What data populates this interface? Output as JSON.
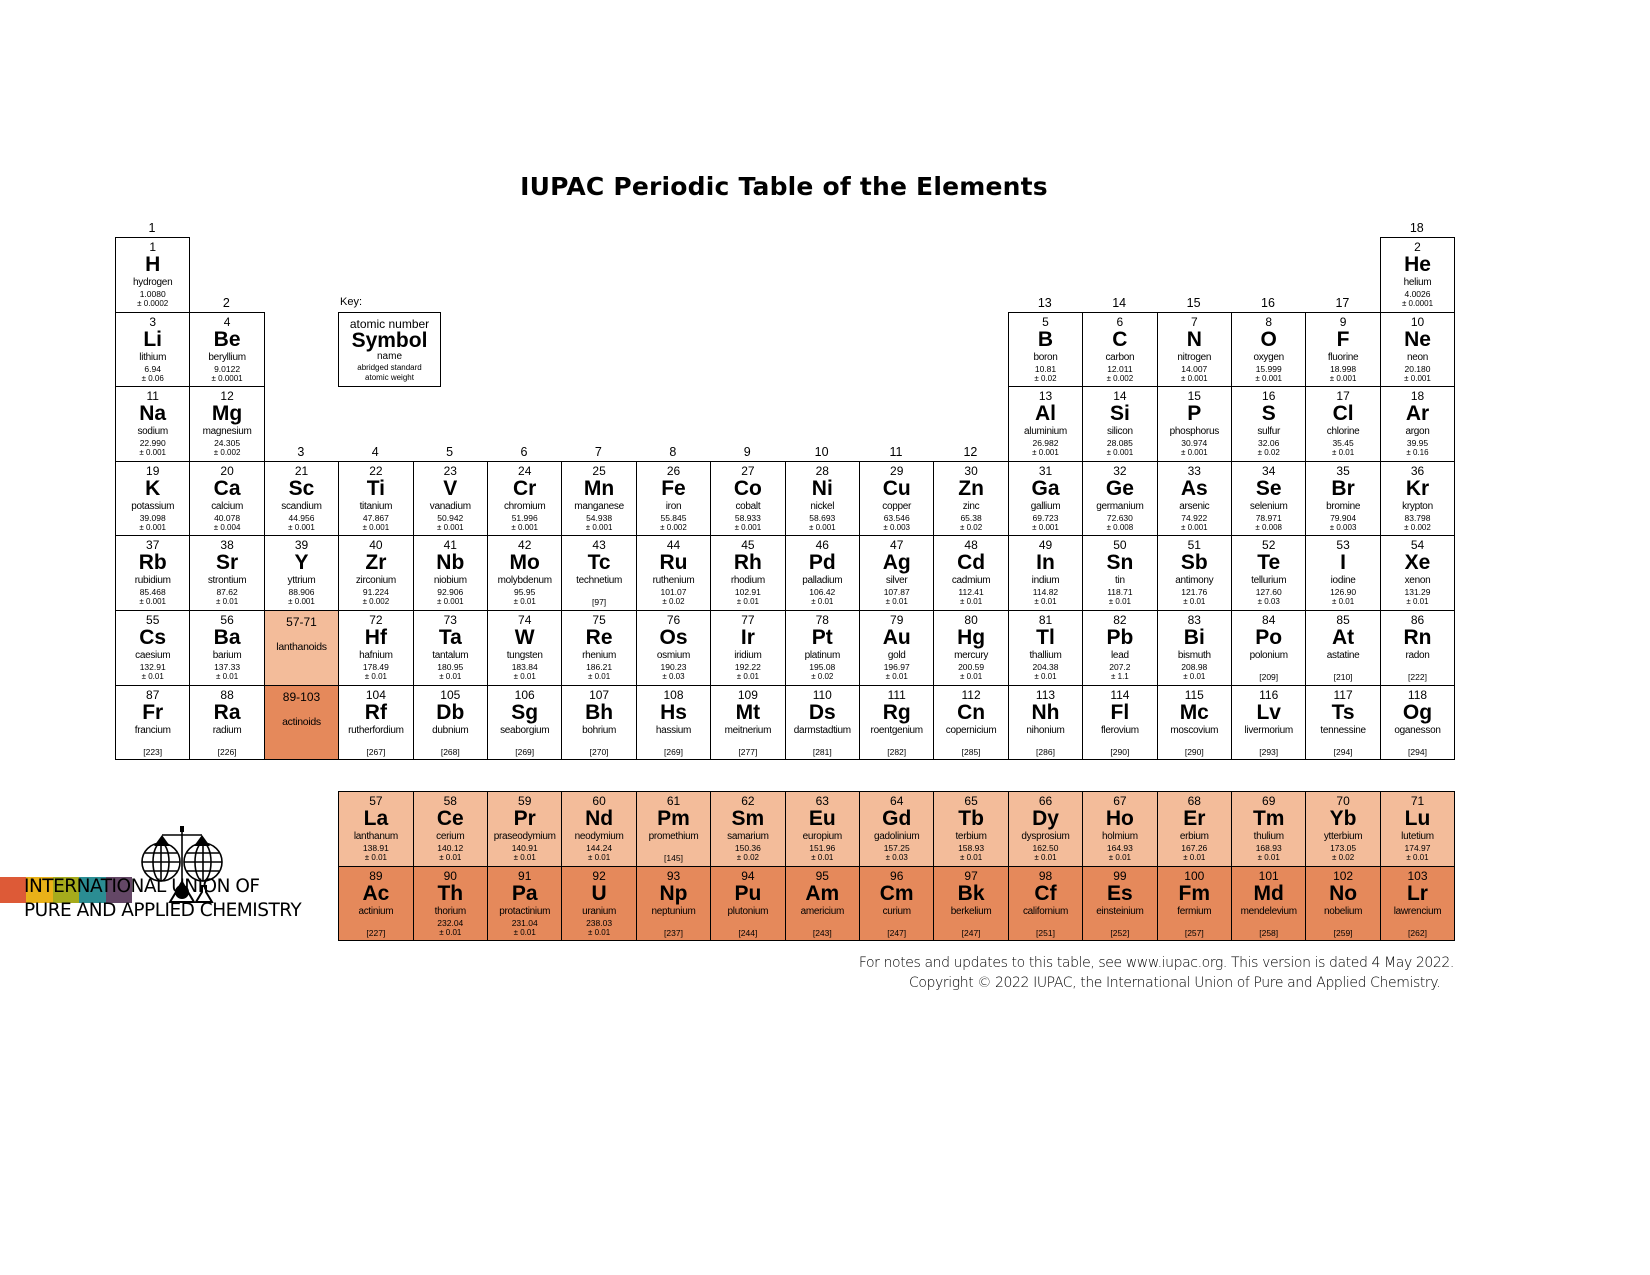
{
  "title": "IUPAC Periodic Table of the Elements",
  "group_labels": [
    1,
    2,
    3,
    4,
    5,
    6,
    7,
    8,
    9,
    10,
    11,
    12,
    13,
    14,
    15,
    16,
    17,
    18
  ],
  "key": {
    "label": "Key:",
    "atomic_number": "atomic number",
    "symbol": "Symbol",
    "name": "name",
    "weight_line1": "abridged standard",
    "weight_line2": "atomic weight"
  },
  "placeholders": {
    "lanthanoids": {
      "range": "57-71",
      "label": "lanthanoids"
    },
    "actinoids": {
      "range": "89-103",
      "label": "actinoids"
    }
  },
  "colors": {
    "lanthanoid": "#f3bc9a",
    "actinoid": "#e5895b",
    "logo_bars": [
      "#dd5a37",
      "#e9b118",
      "#a6ab1c",
      "#2b8d93",
      "#644766"
    ]
  },
  "elements": [
    {
      "n": 1,
      "s": "H",
      "name": "hydrogen",
      "w": "1.0080",
      "u": "± 0.0002",
      "p": 1,
      "g": 1
    },
    {
      "n": 2,
      "s": "He",
      "name": "helium",
      "w": "4.0026",
      "u": "± 0.0001",
      "p": 1,
      "g": 18
    },
    {
      "n": 3,
      "s": "Li",
      "name": "lithium",
      "w": "6.94",
      "u": "± 0.06",
      "p": 2,
      "g": 1
    },
    {
      "n": 4,
      "s": "Be",
      "name": "beryllium",
      "w": "9.0122",
      "u": "± 0.0001",
      "p": 2,
      "g": 2
    },
    {
      "n": 5,
      "s": "B",
      "name": "boron",
      "w": "10.81",
      "u": "± 0.02",
      "p": 2,
      "g": 13
    },
    {
      "n": 6,
      "s": "C",
      "name": "carbon",
      "w": "12.011",
      "u": "± 0.002",
      "p": 2,
      "g": 14
    },
    {
      "n": 7,
      "s": "N",
      "name": "nitrogen",
      "w": "14.007",
      "u": "± 0.001",
      "p": 2,
      "g": 15
    },
    {
      "n": 8,
      "s": "O",
      "name": "oxygen",
      "w": "15.999",
      "u": "± 0.001",
      "p": 2,
      "g": 16
    },
    {
      "n": 9,
      "s": "F",
      "name": "fluorine",
      "w": "18.998",
      "u": "± 0.001",
      "p": 2,
      "g": 17
    },
    {
      "n": 10,
      "s": "Ne",
      "name": "neon",
      "w": "20.180",
      "u": "± 0.001",
      "p": 2,
      "g": 18
    },
    {
      "n": 11,
      "s": "Na",
      "name": "sodium",
      "w": "22.990",
      "u": "± 0.001",
      "p": 3,
      "g": 1
    },
    {
      "n": 12,
      "s": "Mg",
      "name": "magnesium",
      "w": "24.305",
      "u": "± 0.002",
      "p": 3,
      "g": 2
    },
    {
      "n": 13,
      "s": "Al",
      "name": "aluminium",
      "w": "26.982",
      "u": "± 0.001",
      "p": 3,
      "g": 13
    },
    {
      "n": 14,
      "s": "Si",
      "name": "silicon",
      "w": "28.085",
      "u": "± 0.001",
      "p": 3,
      "g": 14
    },
    {
      "n": 15,
      "s": "P",
      "name": "phosphorus",
      "w": "30.974",
      "u": "± 0.001",
      "p": 3,
      "g": 15
    },
    {
      "n": 16,
      "s": "S",
      "name": "sulfur",
      "w": "32.06",
      "u": "± 0.02",
      "p": 3,
      "g": 16
    },
    {
      "n": 17,
      "s": "Cl",
      "name": "chlorine",
      "w": "35.45",
      "u": "± 0.01",
      "p": 3,
      "g": 17
    },
    {
      "n": 18,
      "s": "Ar",
      "name": "argon",
      "w": "39.95",
      "u": "± 0.16",
      "p": 3,
      "g": 18
    },
    {
      "n": 19,
      "s": "K",
      "name": "potassium",
      "w": "39.098",
      "u": "± 0.001",
      "p": 4,
      "g": 1
    },
    {
      "n": 20,
      "s": "Ca",
      "name": "calcium",
      "w": "40.078",
      "u": "± 0.004",
      "p": 4,
      "g": 2
    },
    {
      "n": 21,
      "s": "Sc",
      "name": "scandium",
      "w": "44.956",
      "u": "± 0.001",
      "p": 4,
      "g": 3
    },
    {
      "n": 22,
      "s": "Ti",
      "name": "titanium",
      "w": "47.867",
      "u": "± 0.001",
      "p": 4,
      "g": 4
    },
    {
      "n": 23,
      "s": "V",
      "name": "vanadium",
      "w": "50.942",
      "u": "± 0.001",
      "p": 4,
      "g": 5
    },
    {
      "n": 24,
      "s": "Cr",
      "name": "chromium",
      "w": "51.996",
      "u": "± 0.001",
      "p": 4,
      "g": 6
    },
    {
      "n": 25,
      "s": "Mn",
      "name": "manganese",
      "w": "54.938",
      "u": "± 0.001",
      "p": 4,
      "g": 7
    },
    {
      "n": 26,
      "s": "Fe",
      "name": "iron",
      "w": "55.845",
      "u": "± 0.002",
      "p": 4,
      "g": 8
    },
    {
      "n": 27,
      "s": "Co",
      "name": "cobalt",
      "w": "58.933",
      "u": "± 0.001",
      "p": 4,
      "g": 9
    },
    {
      "n": 28,
      "s": "Ni",
      "name": "nickel",
      "w": "58.693",
      "u": "± 0.001",
      "p": 4,
      "g": 10
    },
    {
      "n": 29,
      "s": "Cu",
      "name": "copper",
      "w": "63.546",
      "u": "± 0.003",
      "p": 4,
      "g": 11
    },
    {
      "n": 30,
      "s": "Zn",
      "name": "zinc",
      "w": "65.38",
      "u": "± 0.02",
      "p": 4,
      "g": 12
    },
    {
      "n": 31,
      "s": "Ga",
      "name": "gallium",
      "w": "69.723",
      "u": "± 0.001",
      "p": 4,
      "g": 13
    },
    {
      "n": 32,
      "s": "Ge",
      "name": "germanium",
      "w": "72.630",
      "u": "± 0.008",
      "p": 4,
      "g": 14
    },
    {
      "n": 33,
      "s": "As",
      "name": "arsenic",
      "w": "74.922",
      "u": "± 0.001",
      "p": 4,
      "g": 15
    },
    {
      "n": 34,
      "s": "Se",
      "name": "selenium",
      "w": "78.971",
      "u": "± 0.008",
      "p": 4,
      "g": 16
    },
    {
      "n": 35,
      "s": "Br",
      "name": "bromine",
      "w": "79.904",
      "u": "± 0.003",
      "p": 4,
      "g": 17
    },
    {
      "n": 36,
      "s": "Kr",
      "name": "krypton",
      "w": "83.798",
      "u": "± 0.002",
      "p": 4,
      "g": 18
    },
    {
      "n": 37,
      "s": "Rb",
      "name": "rubidium",
      "w": "85.468",
      "u": "± 0.001",
      "p": 5,
      "g": 1
    },
    {
      "n": 38,
      "s": "Sr",
      "name": "strontium",
      "w": "87.62",
      "u": "± 0.01",
      "p": 5,
      "g": 2
    },
    {
      "n": 39,
      "s": "Y",
      "name": "yttrium",
      "w": "88.906",
      "u": "± 0.001",
      "p": 5,
      "g": 3
    },
    {
      "n": 40,
      "s": "Zr",
      "name": "zirconium",
      "w": "91.224",
      "u": "± 0.002",
      "p": 5,
      "g": 4
    },
    {
      "n": 41,
      "s": "Nb",
      "name": "niobium",
      "w": "92.906",
      "u": "± 0.001",
      "p": 5,
      "g": 5
    },
    {
      "n": 42,
      "s": "Mo",
      "name": "molybdenum",
      "w": "95.95",
      "u": "± 0.01",
      "p": 5,
      "g": 6
    },
    {
      "n": 43,
      "s": "Tc",
      "name": "technetium",
      "w": "[97]",
      "u": "",
      "p": 5,
      "g": 7
    },
    {
      "n": 44,
      "s": "Ru",
      "name": "ruthenium",
      "w": "101.07",
      "u": "± 0.02",
      "p": 5,
      "g": 8
    },
    {
      "n": 45,
      "s": "Rh",
      "name": "rhodium",
      "w": "102.91",
      "u": "± 0.01",
      "p": 5,
      "g": 9
    },
    {
      "n": 46,
      "s": "Pd",
      "name": "palladium",
      "w": "106.42",
      "u": "± 0.01",
      "p": 5,
      "g": 10
    },
    {
      "n": 47,
      "s": "Ag",
      "name": "silver",
      "w": "107.87",
      "u": "± 0.01",
      "p": 5,
      "g": 11
    },
    {
      "n": 48,
      "s": "Cd",
      "name": "cadmium",
      "w": "112.41",
      "u": "± 0.01",
      "p": 5,
      "g": 12
    },
    {
      "n": 49,
      "s": "In",
      "name": "indium",
      "w": "114.82",
      "u": "± 0.01",
      "p": 5,
      "g": 13
    },
    {
      "n": 50,
      "s": "Sn",
      "name": "tin",
      "w": "118.71",
      "u": "± 0.01",
      "p": 5,
      "g": 14
    },
    {
      "n": 51,
      "s": "Sb",
      "name": "antimony",
      "w": "121.76",
      "u": "± 0.01",
      "p": 5,
      "g": 15
    },
    {
      "n": 52,
      "s": "Te",
      "name": "tellurium",
      "w": "127.60",
      "u": "± 0.03",
      "p": 5,
      "g": 16
    },
    {
      "n": 53,
      "s": "I",
      "name": "iodine",
      "w": "126.90",
      "u": "± 0.01",
      "p": 5,
      "g": 17
    },
    {
      "n": 54,
      "s": "Xe",
      "name": "xenon",
      "w": "131.29",
      "u": "± 0.01",
      "p": 5,
      "g": 18
    },
    {
      "n": 55,
      "s": "Cs",
      "name": "caesium",
      "w": "132.91",
      "u": "± 0.01",
      "p": 6,
      "g": 1
    },
    {
      "n": 56,
      "s": "Ba",
      "name": "barium",
      "w": "137.33",
      "u": "± 0.01",
      "p": 6,
      "g": 2
    },
    {
      "n": 72,
      "s": "Hf",
      "name": "hafnium",
      "w": "178.49",
      "u": "± 0.01",
      "p": 6,
      "g": 4
    },
    {
      "n": 73,
      "s": "Ta",
      "name": "tantalum",
      "w": "180.95",
      "u": "± 0.01",
      "p": 6,
      "g": 5
    },
    {
      "n": 74,
      "s": "W",
      "name": "tungsten",
      "w": "183.84",
      "u": "± 0.01",
      "p": 6,
      "g": 6
    },
    {
      "n": 75,
      "s": "Re",
      "name": "rhenium",
      "w": "186.21",
      "u": "± 0.01",
      "p": 6,
      "g": 7
    },
    {
      "n": 76,
      "s": "Os",
      "name": "osmium",
      "w": "190.23",
      "u": "± 0.03",
      "p": 6,
      "g": 8
    },
    {
      "n": 77,
      "s": "Ir",
      "name": "iridium",
      "w": "192.22",
      "u": "± 0.01",
      "p": 6,
      "g": 9
    },
    {
      "n": 78,
      "s": "Pt",
      "name": "platinum",
      "w": "195.08",
      "u": "± 0.02",
      "p": 6,
      "g": 10
    },
    {
      "n": 79,
      "s": "Au",
      "name": "gold",
      "w": "196.97",
      "u": "± 0.01",
      "p": 6,
      "g": 11
    },
    {
      "n": 80,
      "s": "Hg",
      "name": "mercury",
      "w": "200.59",
      "u": "± 0.01",
      "p": 6,
      "g": 12
    },
    {
      "n": 81,
      "s": "Tl",
      "name": "thallium",
      "w": "204.38",
      "u": "± 0.01",
      "p": 6,
      "g": 13
    },
    {
      "n": 82,
      "s": "Pb",
      "name": "lead",
      "w": "207.2",
      "u": "± 1.1",
      "p": 6,
      "g": 14
    },
    {
      "n": 83,
      "s": "Bi",
      "name": "bismuth",
      "w": "208.98",
      "u": "± 0.01",
      "p": 6,
      "g": 15
    },
    {
      "n": 84,
      "s": "Po",
      "name": "polonium",
      "w": "[209]",
      "u": "",
      "p": 6,
      "g": 16
    },
    {
      "n": 85,
      "s": "At",
      "name": "astatine",
      "w": "[210]",
      "u": "",
      "p": 6,
      "g": 17
    },
    {
      "n": 86,
      "s": "Rn",
      "name": "radon",
      "w": "[222]",
      "u": "",
      "p": 6,
      "g": 18
    },
    {
      "n": 87,
      "s": "Fr",
      "name": "francium",
      "w": "[223]",
      "u": "",
      "p": 7,
      "g": 1
    },
    {
      "n": 88,
      "s": "Ra",
      "name": "radium",
      "w": "[226]",
      "u": "",
      "p": 7,
      "g": 2
    },
    {
      "n": 104,
      "s": "Rf",
      "name": "rutherfordium",
      "w": "[267]",
      "u": "",
      "p": 7,
      "g": 4
    },
    {
      "n": 105,
      "s": "Db",
      "name": "dubnium",
      "w": "[268]",
      "u": "",
      "p": 7,
      "g": 5
    },
    {
      "n": 106,
      "s": "Sg",
      "name": "seaborgium",
      "w": "[269]",
      "u": "",
      "p": 7,
      "g": 6
    },
    {
      "n": 107,
      "s": "Bh",
      "name": "bohrium",
      "w": "[270]",
      "u": "",
      "p": 7,
      "g": 7
    },
    {
      "n": 108,
      "s": "Hs",
      "name": "hassium",
      "w": "[269]",
      "u": "",
      "p": 7,
      "g": 8
    },
    {
      "n": 109,
      "s": "Mt",
      "name": "meitnerium",
      "w": "[277]",
      "u": "",
      "p": 7,
      "g": 9
    },
    {
      "n": 110,
      "s": "Ds",
      "name": "darmstadtium",
      "w": "[281]",
      "u": "",
      "p": 7,
      "g": 10
    },
    {
      "n": 111,
      "s": "Rg",
      "name": "roentgenium",
      "w": "[282]",
      "u": "",
      "p": 7,
      "g": 11
    },
    {
      "n": 112,
      "s": "Cn",
      "name": "copernicium",
      "w": "[285]",
      "u": "",
      "p": 7,
      "g": 12
    },
    {
      "n": 113,
      "s": "Nh",
      "name": "nihonium",
      "w": "[286]",
      "u": "",
      "p": 7,
      "g": 13
    },
    {
      "n": 114,
      "s": "Fl",
      "name": "flerovium",
      "w": "[290]",
      "u": "",
      "p": 7,
      "g": 14
    },
    {
      "n": 115,
      "s": "Mc",
      "name": "moscovium",
      "w": "[290]",
      "u": "",
      "p": 7,
      "g": 15
    },
    {
      "n": 116,
      "s": "Lv",
      "name": "livermorium",
      "w": "[293]",
      "u": "",
      "p": 7,
      "g": 16
    },
    {
      "n": 117,
      "s": "Ts",
      "name": "tennessine",
      "w": "[294]",
      "u": "",
      "p": 7,
      "g": 17
    },
    {
      "n": 118,
      "s": "Og",
      "name": "oganesson",
      "w": "[294]",
      "u": "",
      "p": 7,
      "g": 18
    }
  ],
  "lanthanoids": [
    {
      "n": 57,
      "s": "La",
      "name": "lanthanum",
      "w": "138.91",
      "u": "± 0.01"
    },
    {
      "n": 58,
      "s": "Ce",
      "name": "cerium",
      "w": "140.12",
      "u": "± 0.01"
    },
    {
      "n": 59,
      "s": "Pr",
      "name": "praseodymium",
      "w": "140.91",
      "u": "± 0.01"
    },
    {
      "n": 60,
      "s": "Nd",
      "name": "neodymium",
      "w": "144.24",
      "u": "± 0.01"
    },
    {
      "n": 61,
      "s": "Pm",
      "name": "promethium",
      "w": "[145]",
      "u": ""
    },
    {
      "n": 62,
      "s": "Sm",
      "name": "samarium",
      "w": "150.36",
      "u": "± 0.02"
    },
    {
      "n": 63,
      "s": "Eu",
      "name": "europium",
      "w": "151.96",
      "u": "± 0.01"
    },
    {
      "n": 64,
      "s": "Gd",
      "name": "gadolinium",
      "w": "157.25",
      "u": "± 0.03"
    },
    {
      "n": 65,
      "s": "Tb",
      "name": "terbium",
      "w": "158.93",
      "u": "± 0.01"
    },
    {
      "n": 66,
      "s": "Dy",
      "name": "dysprosium",
      "w": "162.50",
      "u": "± 0.01"
    },
    {
      "n": 67,
      "s": "Ho",
      "name": "holmium",
      "w": "164.93",
      "u": "± 0.01"
    },
    {
      "n": 68,
      "s": "Er",
      "name": "erbium",
      "w": "167.26",
      "u": "± 0.01"
    },
    {
      "n": 69,
      "s": "Tm",
      "name": "thulium",
      "w": "168.93",
      "u": "± 0.01"
    },
    {
      "n": 70,
      "s": "Yb",
      "name": "ytterbium",
      "w": "173.05",
      "u": "± 0.02"
    },
    {
      "n": 71,
      "s": "Lu",
      "name": "lutetium",
      "w": "174.97",
      "u": "± 0.01"
    }
  ],
  "actinoids": [
    {
      "n": 89,
      "s": "Ac",
      "name": "actinium",
      "w": "[227]",
      "u": ""
    },
    {
      "n": 90,
      "s": "Th",
      "name": "thorium",
      "w": "232.04",
      "u": "± 0.01"
    },
    {
      "n": 91,
      "s": "Pa",
      "name": "protactinium",
      "w": "231.04",
      "u": "± 0.01"
    },
    {
      "n": 92,
      "s": "U",
      "name": "uranium",
      "w": "238.03",
      "u": "± 0.01"
    },
    {
      "n": 93,
      "s": "Np",
      "name": "neptunium",
      "w": "[237]",
      "u": ""
    },
    {
      "n": 94,
      "s": "Pu",
      "name": "plutonium",
      "w": "[244]",
      "u": ""
    },
    {
      "n": 95,
      "s": "Am",
      "name": "americium",
      "w": "[243]",
      "u": ""
    },
    {
      "n": 96,
      "s": "Cm",
      "name": "curium",
      "w": "[247]",
      "u": ""
    },
    {
      "n": 97,
      "s": "Bk",
      "name": "berkelium",
      "w": "[247]",
      "u": ""
    },
    {
      "n": 98,
      "s": "Cf",
      "name": "californium",
      "w": "[251]",
      "u": ""
    },
    {
      "n": 99,
      "s": "Es",
      "name": "einsteinium",
      "w": "[252]",
      "u": ""
    },
    {
      "n": 100,
      "s": "Fm",
      "name": "fermium",
      "w": "[257]",
      "u": ""
    },
    {
      "n": 101,
      "s": "Md",
      "name": "mendelevium",
      "w": "[258]",
      "u": ""
    },
    {
      "n": 102,
      "s": "No",
      "name": "nobelium",
      "w": "[259]",
      "u": ""
    },
    {
      "n": 103,
      "s": "Lr",
      "name": "lawrencium",
      "w": "[262]",
      "u": ""
    }
  ],
  "organization": {
    "line1": "INTERNATIONAL UNION OF",
    "line2": "PURE AND APPLIED CHEMISTRY"
  },
  "footer": {
    "line1": "For notes and updates to this table, see www.iupac.org. This version is dated 4 May 2022.",
    "line2": "Copyright © 2022 IUPAC, the International Union of Pure and Applied Chemistry."
  }
}
